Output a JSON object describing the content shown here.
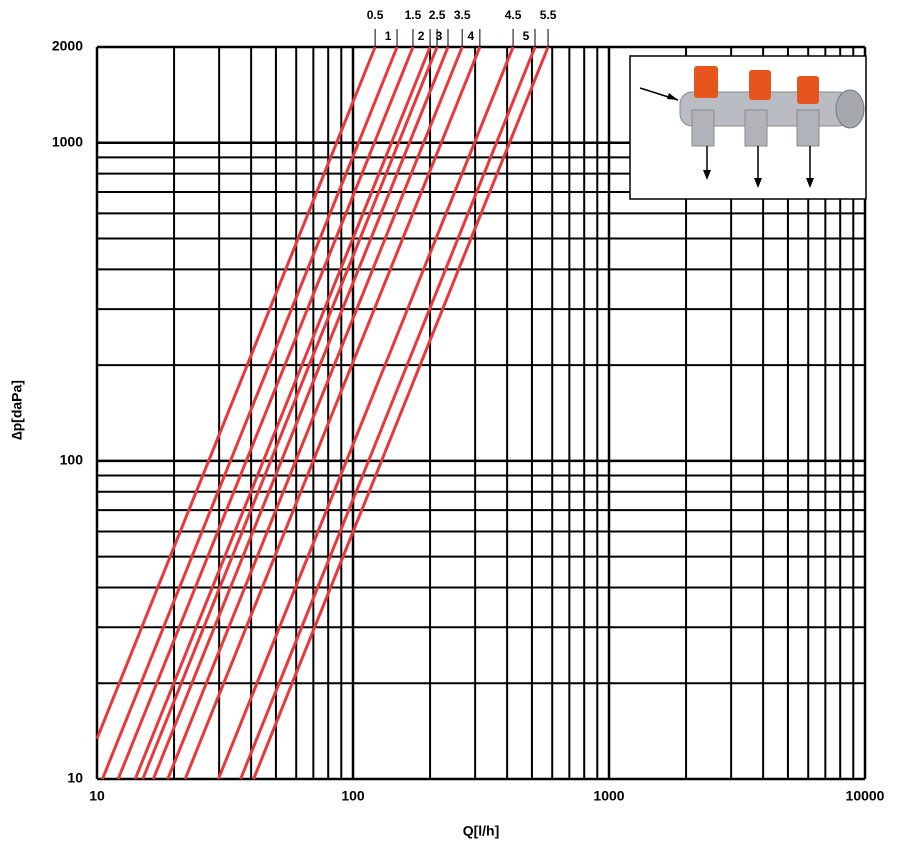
{
  "chart_data": {
    "type": "line",
    "log_x": true,
    "log_y": true,
    "x_label": "Q[l/h]",
    "y_label": "∆p[daPa]",
    "xlim": [
      10,
      10000
    ],
    "ylim": [
      10,
      2000
    ],
    "xticks": [
      10,
      100,
      1000,
      10000
    ],
    "yticks": [
      10,
      100,
      1000,
      2000
    ],
    "x_minor_ticks": [
      20,
      30,
      40,
      50,
      60,
      70,
      80,
      90,
      200,
      300,
      400,
      500,
      600,
      700,
      800,
      900,
      2000,
      3000,
      4000,
      5000,
      6000,
      7000,
      8000,
      9000
    ],
    "y_minor_ticks": [
      20,
      30,
      40,
      50,
      60,
      70,
      80,
      90,
      200,
      300,
      400,
      500,
      600,
      700,
      800,
      900
    ],
    "grid": true,
    "grid_color": "#000000",
    "series": [
      {
        "name": "0.5",
        "color": "#e8383b",
        "x": [
          10,
          122
        ],
        "values": [
          13.4,
          2000
        ]
      },
      {
        "name": "1",
        "color": "#e8383b",
        "x": [
          10.5,
          148.6
        ],
        "values": [
          10,
          2000
        ]
      },
      {
        "name": "1.5",
        "color": "#e8383b",
        "x": [
          12.1,
          171.5
        ],
        "values": [
          10,
          2000
        ]
      },
      {
        "name": "2",
        "color": "#e8383b",
        "x": [
          14.1,
          200
        ],
        "values": [
          10,
          2000
        ]
      },
      {
        "name": "2.5",
        "color": "#e8383b",
        "x": [
          15.1,
          213
        ],
        "values": [
          10,
          2000
        ]
      },
      {
        "name": "3",
        "color": "#e8383b",
        "x": [
          16.6,
          235
        ],
        "values": [
          10,
          2000
        ]
      },
      {
        "name": "3.5",
        "color": "#e8383b",
        "x": [
          18.9,
          267
        ],
        "values": [
          10,
          2000
        ]
      },
      {
        "name": "4",
        "color": "#e8383b",
        "x": [
          22.1,
          313
        ],
        "values": [
          10,
          2000
        ]
      },
      {
        "name": "4.5",
        "color": "#e8383b",
        "x": [
          29.8,
          422
        ],
        "values": [
          10,
          2000
        ]
      },
      {
        "name": "5",
        "color": "#e8383b",
        "x": [
          36.4,
          514
        ],
        "values": [
          10,
          2000
        ]
      },
      {
        "name": "5.5",
        "color": "#e8383b",
        "x": [
          40.9,
          578
        ],
        "values": [
          10,
          2000
        ]
      }
    ]
  }
}
